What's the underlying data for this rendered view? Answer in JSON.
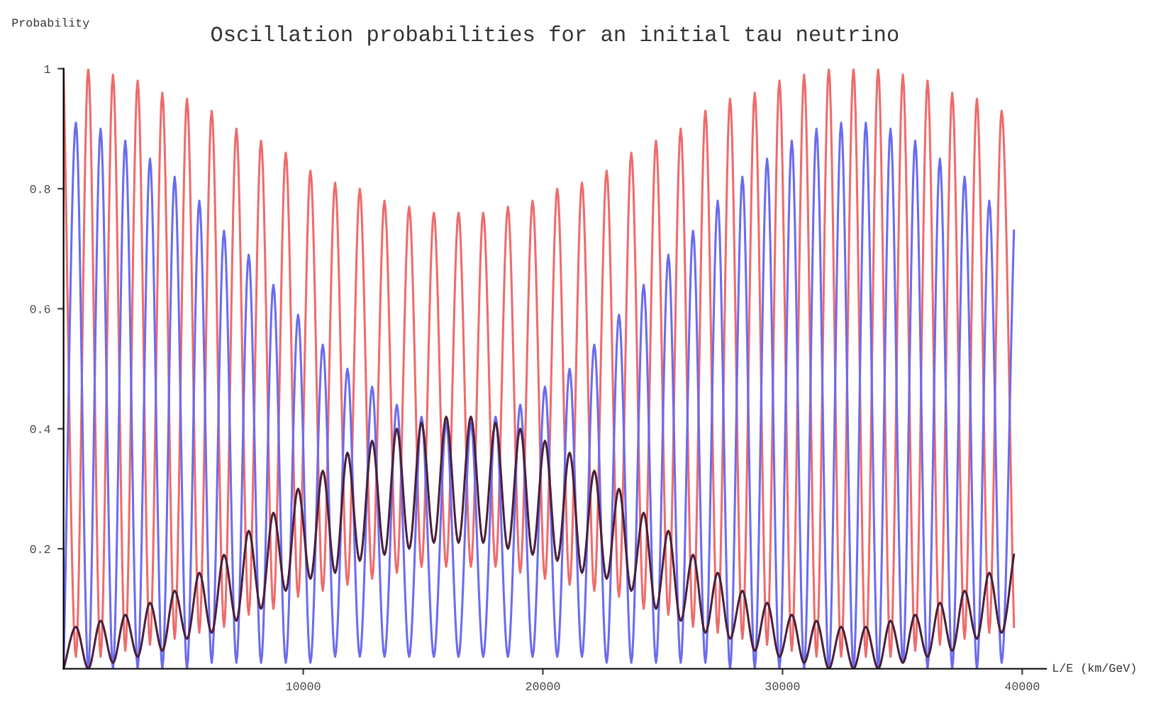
{
  "chart_data": {
    "type": "line",
    "title": "Oscillation probabilities for an initial tau neutrino",
    "xlabel": "L/E (km/GeV)",
    "ylabel": "Probability",
    "x": [
      0,
      515,
      1030,
      1545,
      2060,
      2575,
      3090,
      3605,
      4120,
      4635,
      5150,
      5665,
      6180,
      6695,
      7210,
      7725,
      8240,
      8755,
      9270,
      9785,
      10300,
      10815,
      11330,
      11845,
      12360,
      12875,
      13390,
      13905,
      14420,
      14935,
      15450,
      15965,
      16480,
      16995,
      17510,
      18025,
      18540,
      19055,
      19570,
      20085,
      20600,
      21115,
      21630,
      22145,
      22660,
      23175,
      23690,
      24205,
      24720,
      25235,
      25750,
      26265,
      26780,
      27295,
      27810,
      28325,
      28840,
      29355,
      29870,
      30385,
      30900,
      31415,
      31930,
      32445,
      32960,
      33475,
      33990,
      34505,
      35020,
      35535,
      36050,
      36565,
      37080,
      37595,
      38110,
      38625,
      39140,
      39655
    ],
    "series": [
      {
        "color": "#ee6b6b",
        "values": [
          1,
          0.02,
          1.0,
          0.02,
          0.99,
          0.03,
          0.98,
          0.04,
          0.96,
          0.05,
          0.95,
          0.06,
          0.93,
          0.07,
          0.9,
          0.09,
          0.88,
          0.1,
          0.86,
          0.12,
          0.83,
          0.13,
          0.81,
          0.14,
          0.8,
          0.15,
          0.78,
          0.16,
          0.77,
          0.17,
          0.76,
          0.17,
          0.76,
          0.17,
          0.76,
          0.17,
          0.77,
          0.16,
          0.78,
          0.15,
          0.8,
          0.14,
          0.81,
          0.13,
          0.83,
          0.12,
          0.86,
          0.1,
          0.88,
          0.09,
          0.9,
          0.07,
          0.93,
          0.06,
          0.95,
          0.05,
          0.96,
          0.04,
          0.98,
          0.03,
          0.99,
          0.02,
          1.0,
          0.02,
          1,
          0.02,
          1.0,
          0.02,
          0.99,
          0.03,
          0.98,
          0.04,
          0.96,
          0.05,
          0.95,
          0.06,
          0.93,
          0.07
        ]
      },
      {
        "color": "#6b6bee",
        "values": [
          0,
          0.91,
          0,
          0.9,
          0,
          0.88,
          0,
          0.85,
          0,
          0.82,
          0,
          0.78,
          0.01,
          0.73,
          0.01,
          0.69,
          0.01,
          0.64,
          0.01,
          0.59,
          0.01,
          0.54,
          0.02,
          0.5,
          0.02,
          0.47,
          0.02,
          0.44,
          0.02,
          0.42,
          0.02,
          0.41,
          0.02,
          0.41,
          0.02,
          0.42,
          0.02,
          0.44,
          0.02,
          0.47,
          0.02,
          0.5,
          0.02,
          0.54,
          0.01,
          0.59,
          0.01,
          0.64,
          0.01,
          0.69,
          0.01,
          0.73,
          0.01,
          0.78,
          0,
          0.82,
          0,
          0.85,
          0,
          0.88,
          0,
          0.9,
          0,
          0.91,
          0,
          0.91,
          0,
          0.9,
          0.01,
          0.88,
          0,
          0.85,
          0,
          0.82,
          0,
          0.78,
          0.01,
          0.73
        ]
      },
      {
        "color": "#4a1f3a",
        "values": [
          0,
          0.07,
          0,
          0.08,
          0.01,
          0.09,
          0.02,
          0.11,
          0.03,
          0.13,
          0.05,
          0.16,
          0.06,
          0.19,
          0.08,
          0.23,
          0.1,
          0.26,
          0.13,
          0.3,
          0.15,
          0.33,
          0.16,
          0.36,
          0.18,
          0.38,
          0.19,
          0.4,
          0.2,
          0.41,
          0.21,
          0.42,
          0.21,
          0.42,
          0.21,
          0.41,
          0.2,
          0.4,
          0.19,
          0.38,
          0.18,
          0.36,
          0.16,
          0.33,
          0.15,
          0.3,
          0.13,
          0.26,
          0.1,
          0.23,
          0.08,
          0.19,
          0.06,
          0.16,
          0.05,
          0.13,
          0.03,
          0.11,
          0.02,
          0.09,
          0.01,
          0.08,
          0,
          0.07,
          0,
          0.07,
          0,
          0.08,
          0.01,
          0.09,
          0.02,
          0.11,
          0.03,
          0.13,
          0.05,
          0.16,
          0.06,
          0.19
        ]
      }
    ],
    "xlim": [
      0,
      41000
    ],
    "ylim": [
      0,
      1.0
    ],
    "xticks": [
      10000,
      20000,
      30000,
      40000
    ],
    "yticks": [
      0.2,
      0.4,
      0.6,
      0.8,
      1
    ],
    "grid": false,
    "legend": false,
    "marker": "none",
    "line_style": "solid"
  }
}
